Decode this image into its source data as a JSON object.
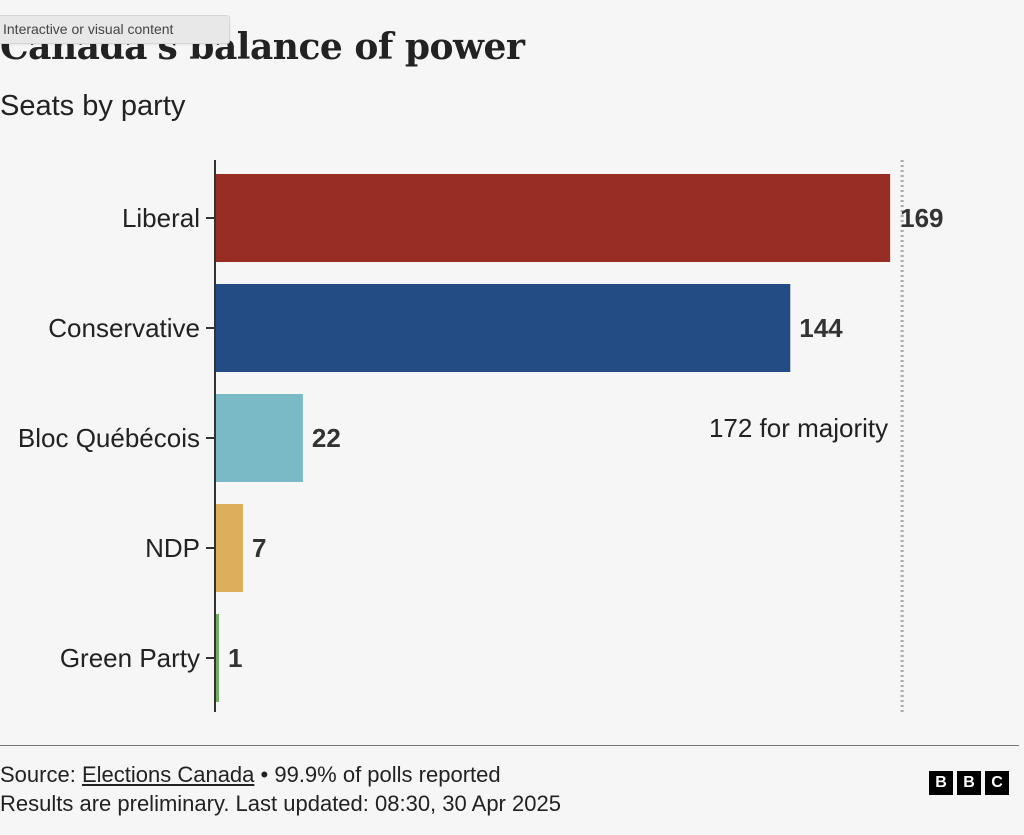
{
  "tooltip": "Interactive or visual content",
  "title": "Canada's balance of power",
  "subtitle": "Seats by party",
  "chart_data": {
    "type": "bar",
    "orientation": "horizontal",
    "title": "Canada's balance of power",
    "subtitle": "Seats by party",
    "xlabel": "",
    "ylabel": "",
    "xlim": [
      0,
      172
    ],
    "grid": false,
    "categories": [
      "Liberal",
      "Conservative",
      "Bloc Québécois",
      "NDP",
      "Green Party"
    ],
    "values": [
      169,
      144,
      22,
      7,
      1
    ],
    "colors": [
      "#982d24",
      "#234c84",
      "#79bac6",
      "#deaf5b",
      "#74ad63"
    ],
    "data_labels": [
      "169",
      "144",
      "22",
      "7",
      "1"
    ],
    "reference_line": {
      "value": 172,
      "label": "172 for majority",
      "style": "dotted"
    }
  },
  "footer": {
    "source_prefix": "Source:",
    "source_link": "Elections Canada",
    "source_suffix": "• 99.9% of polls reported",
    "note": "Results are preliminary. Last updated: 08:30, 30 Apr 2025",
    "logo_letters": [
      "B",
      "B",
      "C"
    ]
  }
}
